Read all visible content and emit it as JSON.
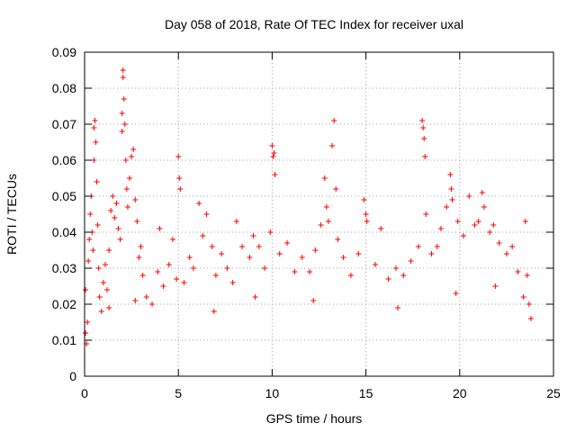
{
  "chart_data": {
    "type": "scatter",
    "title": "Day 058 of 2018, Rate Of TEC Index for receiver uxal",
    "xlabel": "GPS time / hours",
    "ylabel": "ROTI / TECUs",
    "xlim": [
      0,
      25
    ],
    "ylim": [
      0,
      0.09
    ],
    "x_ticks": [
      0,
      5,
      10,
      15,
      20,
      25
    ],
    "y_ticks": [
      0,
      0.01,
      0.02,
      0.03,
      0.04,
      0.05,
      0.06,
      0.07,
      0.08,
      0.09
    ],
    "x_tick_labels": [
      "0",
      "5",
      "10",
      "15",
      "20",
      "25"
    ],
    "y_tick_labels": [
      "0",
      "0.01",
      "0.02",
      "0.03",
      "0.04",
      "0.05",
      "0.06",
      "0.07",
      "0.08",
      "0.09"
    ],
    "grid": true,
    "marker": "+",
    "color": "#ff0000",
    "series": [
      {
        "name": "ROTI",
        "points": [
          [
            0.05,
            0.012
          ],
          [
            0.1,
            0.009
          ],
          [
            0.15,
            0.015
          ],
          [
            0.2,
            0.032
          ],
          [
            0.25,
            0.038
          ],
          [
            0.3,
            0.045
          ],
          [
            0.35,
            0.05
          ],
          [
            0.4,
            0.04
          ],
          [
            0.45,
            0.035
          ],
          [
            0.5,
            0.06
          ],
          [
            0.5,
            0.069
          ],
          [
            0.55,
            0.071
          ],
          [
            0.6,
            0.065
          ],
          [
            0.65,
            0.054
          ],
          [
            0.7,
            0.042
          ],
          [
            0.75,
            0.03
          ],
          [
            0.8,
            0.022
          ],
          [
            0.9,
            0.018
          ],
          [
            1.0,
            0.026
          ],
          [
            1.1,
            0.031
          ],
          [
            1.2,
            0.024
          ],
          [
            1.3,
            0.035
          ],
          [
            1.4,
            0.046
          ],
          [
            1.5,
            0.05
          ],
          [
            1.6,
            0.044
          ],
          [
            1.7,
            0.048
          ],
          [
            1.8,
            0.041
          ],
          [
            1.9,
            0.038
          ],
          [
            2.0,
            0.073
          ],
          [
            2.0,
            0.068
          ],
          [
            2.05,
            0.085
          ],
          [
            2.05,
            0.083
          ],
          [
            2.1,
            0.077
          ],
          [
            2.15,
            0.07
          ],
          [
            2.2,
            0.06
          ],
          [
            2.25,
            0.052
          ],
          [
            2.3,
            0.047
          ],
          [
            2.4,
            0.055
          ],
          [
            2.5,
            0.061
          ],
          [
            2.6,
            0.063
          ],
          [
            2.7,
            0.049
          ],
          [
            2.8,
            0.043
          ],
          [
            2.9,
            0.033
          ],
          [
            3.0,
            0.036
          ],
          [
            3.1,
            0.028
          ],
          [
            3.3,
            0.022
          ],
          [
            3.6,
            0.02
          ],
          [
            3.9,
            0.029
          ],
          [
            4.0,
            0.041
          ],
          [
            4.2,
            0.025
          ],
          [
            4.5,
            0.031
          ],
          [
            4.7,
            0.038
          ],
          [
            4.9,
            0.027
          ],
          [
            5.0,
            0.061
          ],
          [
            5.05,
            0.055
          ],
          [
            5.1,
            0.052
          ],
          [
            5.3,
            0.026
          ],
          [
            5.6,
            0.033
          ],
          [
            5.8,
            0.03
          ],
          [
            6.1,
            0.048
          ],
          [
            6.3,
            0.039
          ],
          [
            6.5,
            0.045
          ],
          [
            6.8,
            0.036
          ],
          [
            7.0,
            0.028
          ],
          [
            7.3,
            0.034
          ],
          [
            7.6,
            0.03
          ],
          [
            7.9,
            0.026
          ],
          [
            8.1,
            0.043
          ],
          [
            8.4,
            0.036
          ],
          [
            8.8,
            0.033
          ],
          [
            9.0,
            0.039
          ],
          [
            9.3,
            0.036
          ],
          [
            9.6,
            0.03
          ],
          [
            9.9,
            0.04
          ],
          [
            10.0,
            0.064
          ],
          [
            10.05,
            0.061
          ],
          [
            10.1,
            0.062
          ],
          [
            10.15,
            0.056
          ],
          [
            10.4,
            0.034
          ],
          [
            10.8,
            0.037
          ],
          [
            11.2,
            0.029
          ],
          [
            11.6,
            0.033
          ],
          [
            12.0,
            0.029
          ],
          [
            12.3,
            0.035
          ],
          [
            12.6,
            0.042
          ],
          [
            12.8,
            0.055
          ],
          [
            12.9,
            0.047
          ],
          [
            13.0,
            0.043
          ],
          [
            13.2,
            0.064
          ],
          [
            13.3,
            0.071
          ],
          [
            13.4,
            0.052
          ],
          [
            13.5,
            0.038
          ],
          [
            13.8,
            0.033
          ],
          [
            14.2,
            0.028
          ],
          [
            14.6,
            0.034
          ],
          [
            14.9,
            0.049
          ],
          [
            15.0,
            0.045
          ],
          [
            15.05,
            0.043
          ],
          [
            15.5,
            0.031
          ],
          [
            15.8,
            0.041
          ],
          [
            16.2,
            0.027
          ],
          [
            16.6,
            0.03
          ],
          [
            17.0,
            0.028
          ],
          [
            17.4,
            0.032
          ],
          [
            17.8,
            0.036
          ],
          [
            18.0,
            0.071
          ],
          [
            18.05,
            0.069
          ],
          [
            18.1,
            0.066
          ],
          [
            18.15,
            0.061
          ],
          [
            18.2,
            0.045
          ],
          [
            18.5,
            0.034
          ],
          [
            18.8,
            0.036
          ],
          [
            19.0,
            0.041
          ],
          [
            19.3,
            0.047
          ],
          [
            19.5,
            0.056
          ],
          [
            19.55,
            0.052
          ],
          [
            19.6,
            0.049
          ],
          [
            19.9,
            0.043
          ],
          [
            20.2,
            0.039
          ],
          [
            20.5,
            0.05
          ],
          [
            20.8,
            0.042
          ],
          [
            21.0,
            0.043
          ],
          [
            21.2,
            0.051
          ],
          [
            21.3,
            0.047
          ],
          [
            21.6,
            0.04
          ],
          [
            21.8,
            0.042
          ],
          [
            22.1,
            0.037
          ],
          [
            22.5,
            0.034
          ],
          [
            22.8,
            0.036
          ],
          [
            23.1,
            0.029
          ],
          [
            23.5,
            0.043
          ],
          [
            23.6,
            0.028
          ],
          [
            23.7,
            0.02
          ],
          [
            23.8,
            0.016
          ],
          [
            0.05,
            0.024
          ],
          [
            1.3,
            0.019
          ],
          [
            2.7,
            0.021
          ],
          [
            6.9,
            0.018
          ],
          [
            9.1,
            0.022
          ],
          [
            12.2,
            0.021
          ],
          [
            16.7,
            0.019
          ],
          [
            19.8,
            0.023
          ],
          [
            21.9,
            0.025
          ],
          [
            23.4,
            0.022
          ]
        ]
      }
    ]
  }
}
